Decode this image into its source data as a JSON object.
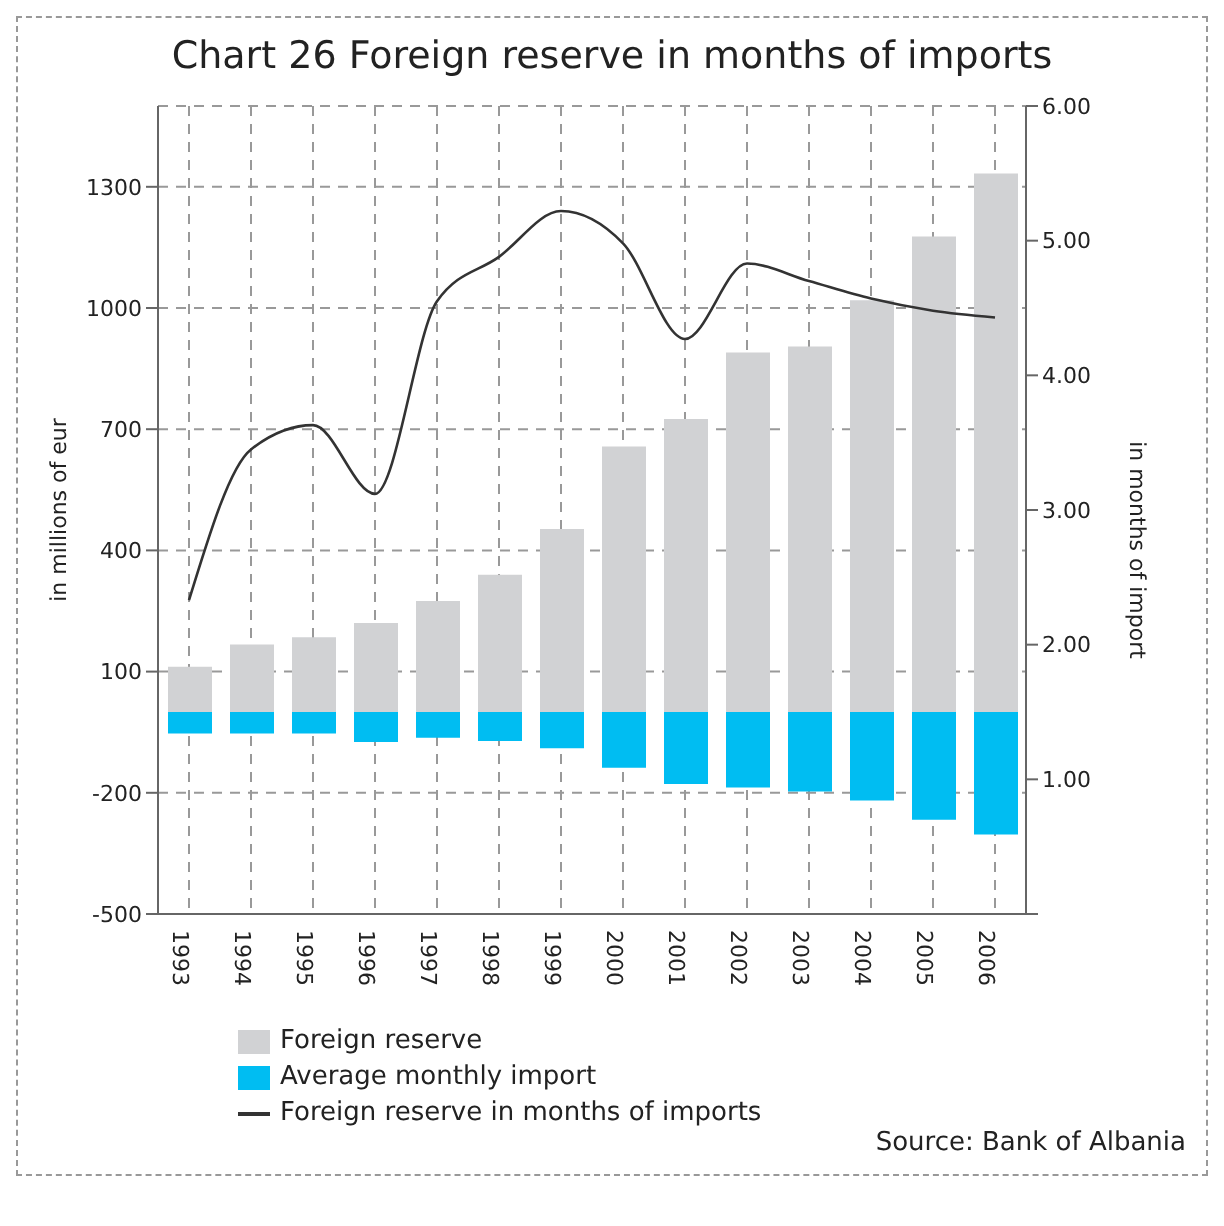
{
  "chart_data": {
    "type": "bar",
    "title": "Chart 26 Foreign reserve in months of imports",
    "ylabel": "in millions of eur",
    "y2label": "in months of import",
    "annotations": [
      "Source: Bank of Albania"
    ],
    "categories": [
      "1993",
      "1994",
      "1995",
      "1996",
      "1997",
      "1998",
      "1999",
      "2000",
      "2001",
      "2002",
      "2003",
      "2004",
      "2005",
      "2006"
    ],
    "series": [
      {
        "name": "Foreign reserve",
        "color": "#d1d2d4",
        "values": [
          112,
          167,
          185,
          220,
          275,
          340,
          453,
          657,
          725,
          890,
          905,
          1019,
          1177,
          1333
        ]
      },
      {
        "name": "Average monthly import",
        "color": "#00bdf2",
        "values": [
          -53,
          -53,
          -53,
          -74,
          -64,
          -72,
          -90,
          -138,
          -178,
          -187,
          -197,
          -219,
          -267,
          -303
        ]
      },
      {
        "name": "Foreign reserve in months of imports",
        "type": "line",
        "axis": "y2",
        "color": "#333333",
        "values": [
          2.33,
          3.45,
          3.63,
          3.12,
          4.55,
          4.88,
          5.22,
          4.98,
          4.27,
          4.83,
          4.7,
          4.57,
          4.48,
          4.43
        ]
      }
    ],
    "stacked": true,
    "ylim": [
      -500,
      1500
    ],
    "yticks": [
      -500,
      -200,
      100,
      400,
      700,
      1000,
      1300
    ],
    "y2lim": [
      0,
      6
    ],
    "y2ticks": [
      {
        "value": 0,
        "label": null
      },
      {
        "value": 1,
        "label": "1.00"
      },
      {
        "value": 2,
        "label": "2.00"
      },
      {
        "value": 3,
        "label": "3.00"
      },
      {
        "value": 4,
        "label": "4.00"
      },
      {
        "value": 5,
        "label": "5.00"
      },
      {
        "value": 6,
        "label": "6.00"
      }
    ],
    "grid": true,
    "legend": "bottom",
    "marker": "none",
    "line_style": "solid"
  }
}
